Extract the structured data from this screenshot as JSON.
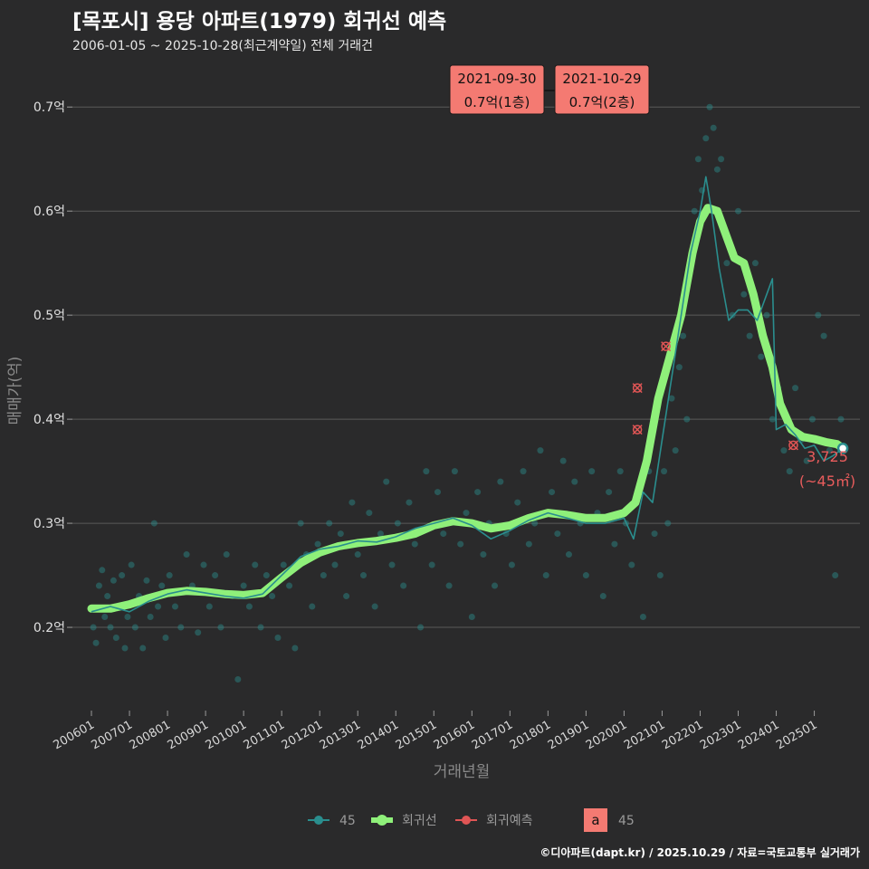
{
  "header": {
    "title": "[목포시] 용당 아파트(1979) 회귀선 예측",
    "subtitle": "2006-01-05 ~ 2025-10-28(최근계약일) 전체 거래건"
  },
  "footer": {
    "credit": "©디아파트(dapt.kr) / 2025.10.29 / 자료=국토교통부 실거래가"
  },
  "colors": {
    "background": "#2a2a2b",
    "grid": "#5a5a5a",
    "series_45": "#2a8e8e",
    "regression": "#8ff07a",
    "prediction": "#e05555",
    "label_box": "#f47a72"
  },
  "chart_data": {
    "type": "scatter",
    "xlabel": "거래년월",
    "ylabel": "매매가(억)",
    "xlim": [
      2005.5,
      2026.2
    ],
    "ylim": [
      0.12,
      0.735
    ],
    "yticks": [
      0.2,
      0.3,
      0.4,
      0.5,
      0.6,
      0.7
    ],
    "ytick_labels": [
      "0.2억",
      "0.3억",
      "0.4억",
      "0.5억",
      "0.6억",
      "0.7억"
    ],
    "xticks": [
      2006,
      2007,
      2008,
      2009,
      2010,
      2011,
      2012,
      2013,
      2014,
      2015,
      2016,
      2017,
      2018,
      2019,
      2020,
      2021,
      2022,
      2023,
      2024,
      2025
    ],
    "xtick_labels": [
      "200601",
      "200701",
      "200801",
      "200901",
      "201001",
      "201101",
      "201201",
      "201301",
      "201401",
      "201501",
      "201601",
      "201701",
      "201801",
      "201901",
      "202001",
      "202101",
      "202201",
      "202301",
      "202401",
      "202501"
    ],
    "series": [
      {
        "name": "45",
        "kind": "monthly-mean-line",
        "x": [
          2006.0,
          2006.5,
          2007.0,
          2007.5,
          2008.0,
          2008.5,
          2009.0,
          2009.5,
          2010.0,
          2010.5,
          2011.0,
          2011.5,
          2012.0,
          2012.5,
          2013.0,
          2013.5,
          2014.0,
          2014.5,
          2015.0,
          2015.5,
          2016.0,
          2016.5,
          2017.0,
          2017.5,
          2018.0,
          2018.5,
          2019.0,
          2019.5,
          2020.0,
          2020.25,
          2020.5,
          2020.75,
          2021.0,
          2021.25,
          2021.5,
          2021.75,
          2022.0,
          2022.15,
          2022.3,
          2022.5,
          2022.75,
          2023.0,
          2023.25,
          2023.5,
          2023.75,
          2023.9,
          2024.0,
          2024.25,
          2024.5,
          2024.75,
          2025.0,
          2025.25,
          2025.5,
          2025.75
        ],
        "y": [
          0.215,
          0.22,
          0.215,
          0.225,
          0.232,
          0.236,
          0.233,
          0.23,
          0.228,
          0.232,
          0.25,
          0.268,
          0.275,
          0.278,
          0.283,
          0.282,
          0.287,
          0.295,
          0.3,
          0.305,
          0.298,
          0.285,
          0.293,
          0.303,
          0.31,
          0.305,
          0.3,
          0.3,
          0.305,
          0.285,
          0.33,
          0.32,
          0.38,
          0.44,
          0.5,
          0.56,
          0.6,
          0.633,
          0.6,
          0.545,
          0.495,
          0.505,
          0.505,
          0.495,
          0.52,
          0.535,
          0.39,
          0.395,
          0.385,
          0.372,
          0.375,
          0.36,
          0.365,
          0.372
        ]
      },
      {
        "name": "회귀선",
        "kind": "smoothed-regression",
        "x": [
          2006.0,
          2006.5,
          2007.0,
          2007.5,
          2008.0,
          2008.5,
          2009.0,
          2009.5,
          2010.0,
          2010.5,
          2011.0,
          2011.5,
          2012.0,
          2012.5,
          2013.0,
          2013.5,
          2014.0,
          2014.5,
          2015.0,
          2015.5,
          2016.0,
          2016.5,
          2017.0,
          2017.5,
          2018.0,
          2018.5,
          2019.0,
          2019.5,
          2020.0,
          2020.3,
          2020.6,
          2020.9,
          2021.2,
          2021.5,
          2021.8,
          2022.0,
          2022.2,
          2022.45,
          2022.7,
          2022.9,
          2023.15,
          2023.4,
          2023.65,
          2023.9,
          2024.1,
          2024.4,
          2024.7,
          2025.0,
          2025.3,
          2025.6,
          2025.75
        ],
        "y": [
          0.218,
          0.218,
          0.222,
          0.228,
          0.233,
          0.235,
          0.234,
          0.232,
          0.231,
          0.233,
          0.248,
          0.262,
          0.272,
          0.278,
          0.281,
          0.283,
          0.286,
          0.29,
          0.298,
          0.302,
          0.3,
          0.295,
          0.298,
          0.305,
          0.31,
          0.308,
          0.305,
          0.305,
          0.31,
          0.32,
          0.36,
          0.42,
          0.46,
          0.5,
          0.56,
          0.59,
          0.603,
          0.6,
          0.575,
          0.555,
          0.55,
          0.52,
          0.48,
          0.45,
          0.415,
          0.39,
          0.383,
          0.381,
          0.378,
          0.376,
          0.372
        ]
      },
      {
        "name": "회귀예측",
        "kind": "prediction-markers",
        "x": [
          2020.35,
          2020.35,
          2021.1,
          2024.45
        ],
        "y": [
          0.43,
          0.39,
          0.47,
          0.375
        ]
      }
    ],
    "transactions": {
      "name": "45",
      "x": [
        2006.05,
        2006.12,
        2006.2,
        2006.28,
        2006.35,
        2006.42,
        2006.5,
        2006.58,
        2006.65,
        2006.72,
        2006.8,
        2006.88,
        2006.95,
        2007.05,
        2007.15,
        2007.25,
        2007.35,
        2007.45,
        2007.55,
        2007.65,
        2007.75,
        2007.85,
        2007.95,
        2008.05,
        2008.2,
        2008.35,
        2008.5,
        2008.65,
        2008.8,
        2008.95,
        2009.1,
        2009.25,
        2009.4,
        2009.55,
        2009.7,
        2009.85,
        2010.0,
        2010.15,
        2010.3,
        2010.45,
        2010.6,
        2010.75,
        2010.9,
        2011.05,
        2011.2,
        2011.35,
        2011.5,
        2011.65,
        2011.8,
        2011.95,
        2012.1,
        2012.25,
        2012.4,
        2012.55,
        2012.7,
        2012.85,
        2013.0,
        2013.15,
        2013.3,
        2013.45,
        2013.6,
        2013.75,
        2013.9,
        2014.05,
        2014.2,
        2014.35,
        2014.5,
        2014.65,
        2014.8,
        2014.95,
        2015.1,
        2015.25,
        2015.4,
        2015.55,
        2015.7,
        2015.85,
        2016.0,
        2016.15,
        2016.3,
        2016.45,
        2016.6,
        2016.75,
        2016.9,
        2017.05,
        2017.2,
        2017.35,
        2017.5,
        2017.65,
        2017.8,
        2017.95,
        2018.1,
        2018.25,
        2018.4,
        2018.55,
        2018.7,
        2018.85,
        2019.0,
        2019.15,
        2019.3,
        2019.45,
        2019.6,
        2019.75,
        2019.9,
        2020.05,
        2020.2,
        2020.35,
        2020.5,
        2020.65,
        2020.8,
        2020.95,
        2021.05,
        2021.15,
        2021.25,
        2021.35,
        2021.45,
        2021.55,
        2021.65,
        2021.75,
        2021.85,
        2021.95,
        2022.05,
        2022.15,
        2022.25,
        2022.35,
        2022.45,
        2022.55,
        2022.7,
        2022.85,
        2023.0,
        2023.15,
        2023.3,
        2023.45,
        2023.6,
        2023.75,
        2023.9,
        2024.05,
        2024.2,
        2024.35,
        2024.5,
        2024.65,
        2024.8,
        2024.95,
        2025.1,
        2025.25,
        2025.4,
        2025.55,
        2025.7
      ],
      "y": [
        0.2,
        0.185,
        0.24,
        0.255,
        0.21,
        0.23,
        0.2,
        0.245,
        0.19,
        0.22,
        0.25,
        0.18,
        0.21,
        0.26,
        0.2,
        0.23,
        0.18,
        0.245,
        0.21,
        0.3,
        0.22,
        0.24,
        0.19,
        0.25,
        0.22,
        0.2,
        0.27,
        0.24,
        0.195,
        0.26,
        0.22,
        0.25,
        0.2,
        0.27,
        0.23,
        0.15,
        0.24,
        0.22,
        0.26,
        0.2,
        0.25,
        0.23,
        0.19,
        0.26,
        0.24,
        0.18,
        0.3,
        0.27,
        0.22,
        0.28,
        0.25,
        0.3,
        0.26,
        0.29,
        0.23,
        0.32,
        0.27,
        0.25,
        0.31,
        0.22,
        0.29,
        0.34,
        0.26,
        0.3,
        0.24,
        0.32,
        0.28,
        0.2,
        0.35,
        0.26,
        0.33,
        0.29,
        0.24,
        0.35,
        0.28,
        0.31,
        0.21,
        0.33,
        0.27,
        0.3,
        0.24,
        0.34,
        0.29,
        0.26,
        0.32,
        0.35,
        0.28,
        0.3,
        0.37,
        0.25,
        0.33,
        0.29,
        0.36,
        0.27,
        0.34,
        0.3,
        0.25,
        0.35,
        0.31,
        0.23,
        0.33,
        0.28,
        0.35,
        0.3,
        0.26,
        0.33,
        0.21,
        0.35,
        0.29,
        0.25,
        0.35,
        0.3,
        0.42,
        0.37,
        0.45,
        0.48,
        0.4,
        0.55,
        0.6,
        0.65,
        0.62,
        0.67,
        0.7,
        0.68,
        0.64,
        0.65,
        0.55,
        0.5,
        0.6,
        0.52,
        0.48,
        0.55,
        0.46,
        0.5,
        0.4,
        0.43,
        0.37,
        0.35,
        0.43,
        0.38,
        0.36,
        0.4,
        0.5,
        0.48,
        0.37,
        0.25,
        0.4
      ]
    },
    "annotations": [
      {
        "date": "2021-09-30",
        "value": "0.7억(1층)"
      },
      {
        "date": "2021-10-29",
        "value": "0.7억(2층)"
      }
    ],
    "last_point": {
      "x": 2025.75,
      "y": 0.372,
      "label": "3,725",
      "sublabel": "(~45㎡)"
    },
    "legend": [
      {
        "key": "45",
        "label": "45",
        "color": "#2a8e8e"
      },
      {
        "key": "regression",
        "label": "회귀선",
        "color": "#8ff07a"
      },
      {
        "key": "prediction",
        "label": "회귀예측",
        "color": "#e05555"
      },
      {
        "key": "text_a",
        "symbol": "a",
        "label": "45",
        "color": "#f47a72"
      }
    ],
    "legend_position": "bottom"
  }
}
